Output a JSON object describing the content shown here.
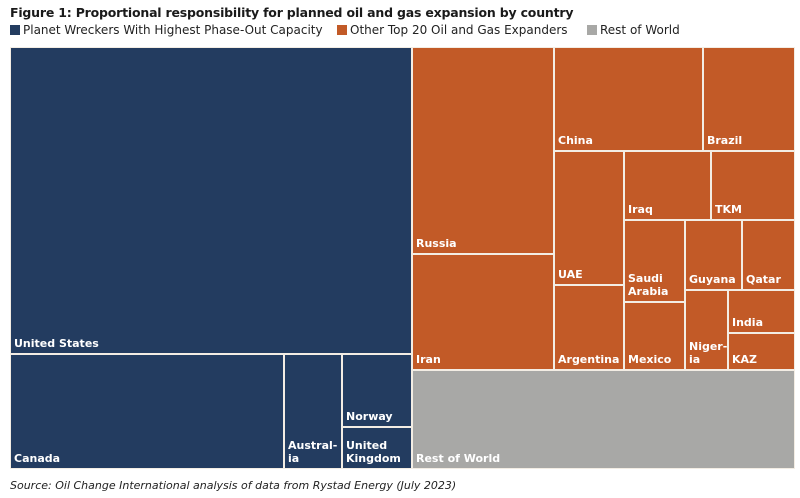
{
  "chart_data": {
    "type": "treemap",
    "title": "Figure 1: Proportional responsibility for planned oil and gas expansion by country",
    "source": "Source: Oil Change International analysis of data from Rystad Energy (July 2023)",
    "legend": [
      {
        "name": "Planet Wreckers With Highest Phase-Out Capacity",
        "color": "#233c60"
      },
      {
        "name": "Other Top 20 Oil and Gas Expanders",
        "color": "#c25a27"
      },
      {
        "name": "Rest of World",
        "color": "#a8a8a6"
      }
    ],
    "legend_position": "top-left",
    "units": "approximate share of total planned expansion (%)",
    "groups": [
      {
        "name": "Planet Wreckers With Highest Phase-Out Capacity",
        "color": "#233c60",
        "items": [
          {
            "label": "United States",
            "value": 37.3
          },
          {
            "label": "Canada",
            "value": 9.5
          },
          {
            "label": "Austral-\nia",
            "value": 2.0
          },
          {
            "label": "Norway",
            "value": 1.5
          },
          {
            "label": "United\nKingdom",
            "value": 0.9
          }
        ]
      },
      {
        "name": "Other Top 20 Oil and Gas Expanders",
        "color": "#c25a27",
        "items": [
          {
            "label": "Russia",
            "value": 8.8
          },
          {
            "label": "Iran",
            "value": 4.9
          },
          {
            "label": "China",
            "value": 4.6
          },
          {
            "label": "Brazil",
            "value": 2.9
          },
          {
            "label": "UAE",
            "value": 2.8
          },
          {
            "label": "Argentina",
            "value": 1.8
          },
          {
            "label": "Iraq",
            "value": 1.8
          },
          {
            "label": "TKM",
            "value": 1.7
          },
          {
            "label": "Saudi\nArabia",
            "value": 1.5
          },
          {
            "label": "Mexico",
            "value": 1.3
          },
          {
            "label": "Guyana",
            "value": 1.2
          },
          {
            "label": "Qatar",
            "value": 1.1
          },
          {
            "label": "Nigeria",
            "display": "Niger-\nia",
            "value": 1.0
          },
          {
            "label": "India",
            "value": 0.9
          },
          {
            "label": "KAZ",
            "value": 0.8
          }
        ]
      },
      {
        "name": "Rest of World",
        "color": "#a8a8a6",
        "items": [
          {
            "label": "Rest of World",
            "value": 11.7
          }
        ]
      }
    ]
  }
}
